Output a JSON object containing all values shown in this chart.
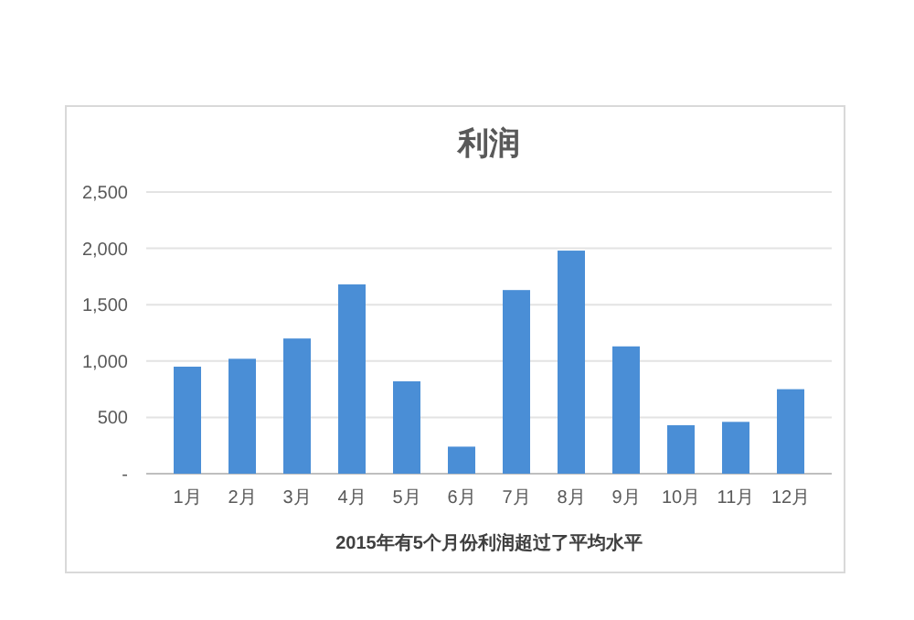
{
  "chart_data": {
    "type": "bar",
    "title": "利润",
    "categories": [
      "1月",
      "2月",
      "3月",
      "4月",
      "5月",
      "6月",
      "7月",
      "8月",
      "9月",
      "10月",
      "11月",
      "12月"
    ],
    "values": [
      950,
      1020,
      1200,
      1680,
      820,
      240,
      1630,
      1980,
      1130,
      430,
      460,
      750
    ],
    "color": "#4a8ed6",
    "ylim": [
      0,
      2500
    ],
    "yticks": [
      {
        "value": 0,
        "label": "-"
      },
      {
        "value": 500,
        "label": "500"
      },
      {
        "value": 1000,
        "label": "1,000"
      },
      {
        "value": 1500,
        "label": "1,500"
      },
      {
        "value": 2000,
        "label": "2,000"
      },
      {
        "value": 2500,
        "label": "2,500"
      }
    ],
    "grid": "y",
    "annotations": [
      "2015年有5个月份利润超过了平均水平"
    ]
  }
}
